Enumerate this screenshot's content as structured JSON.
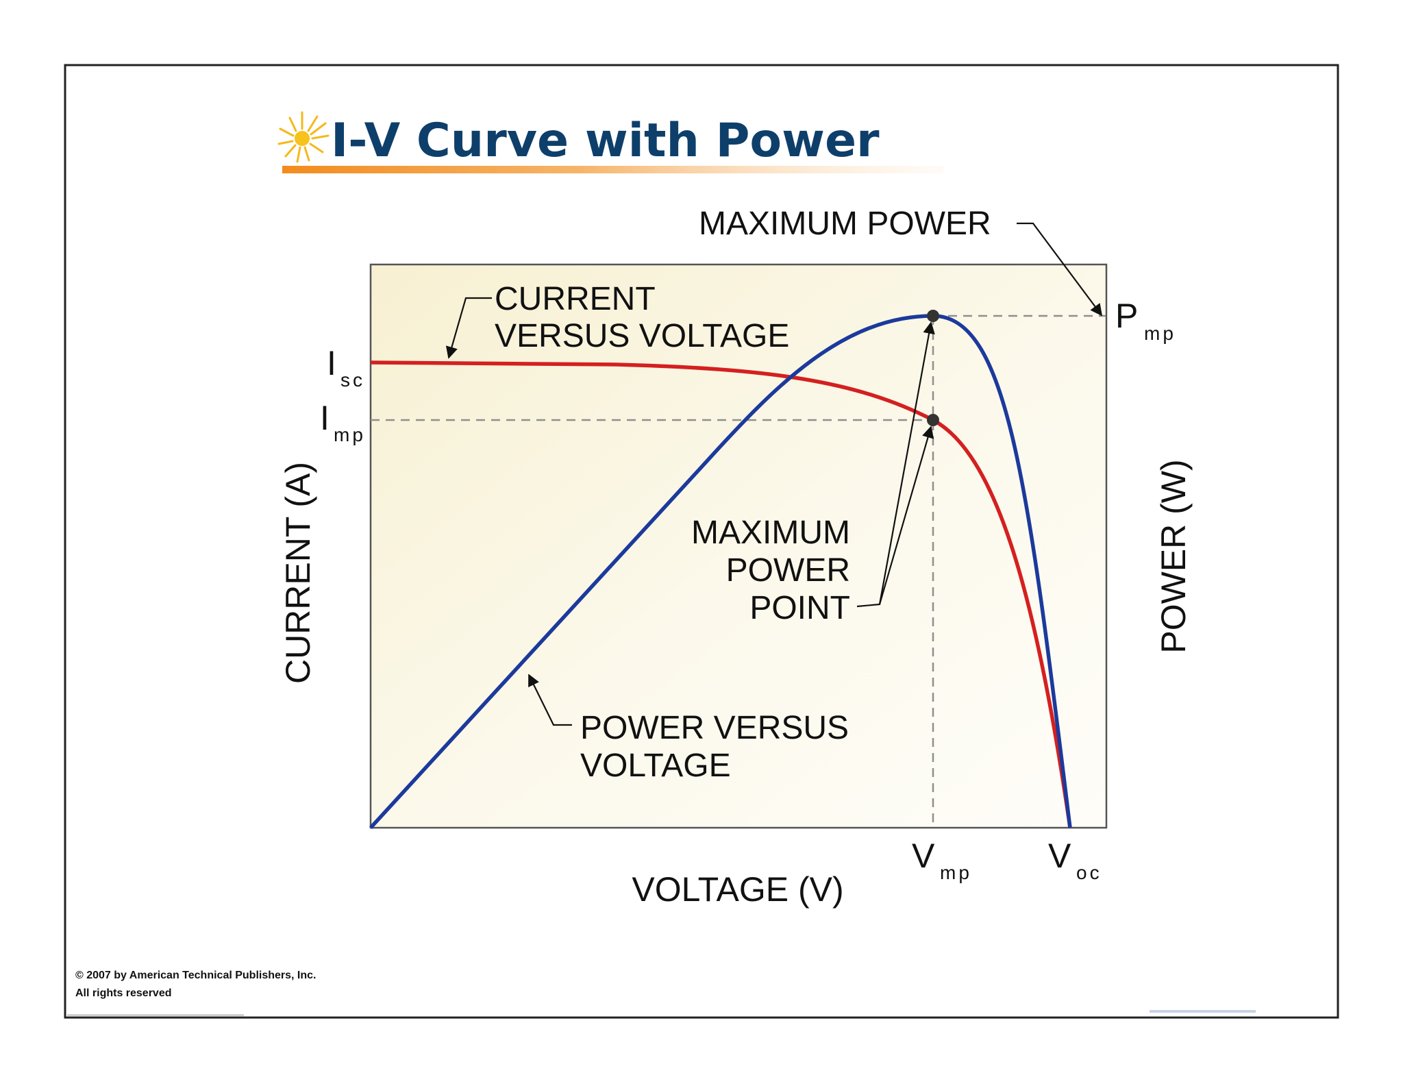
{
  "slide": {
    "title": "I-V Curve with Power",
    "copyright_line1": "© 2007 by American Technical Publishers, Inc.",
    "copyright_line2": "All rights reserved"
  },
  "diagram": {
    "x_axis_label": "VOLTAGE (V)",
    "y_axis_left_label": "CURRENT (A)",
    "y_axis_right_label": "POWER (W)",
    "callout_max_power": "MAXIMUM POWER",
    "callout_iv_line1": "CURRENT",
    "callout_iv_line2": "VERSUS VOLTAGE",
    "callout_mpp_line1": "MAXIMUM",
    "callout_mpp_line2": "POWER",
    "callout_mpp_line3": "POINT",
    "callout_pv_line1": "POWER VERSUS",
    "callout_pv_line2": "VOLTAGE",
    "isc_main": "I",
    "isc_sub": "sc",
    "imp_main": "I",
    "imp_sub": "mp",
    "pmp_main": "P",
    "pmp_sub": "mp",
    "vmp_main": "V",
    "vmp_sub": "mp",
    "voc_main": "V",
    "voc_sub": "oc"
  },
  "colors": {
    "current_curve": "#d42020",
    "power_curve": "#1c3a9c",
    "title": "#0e3f6b",
    "plot_background": "#fbf7e6",
    "underline": "#f28c1e"
  }
}
